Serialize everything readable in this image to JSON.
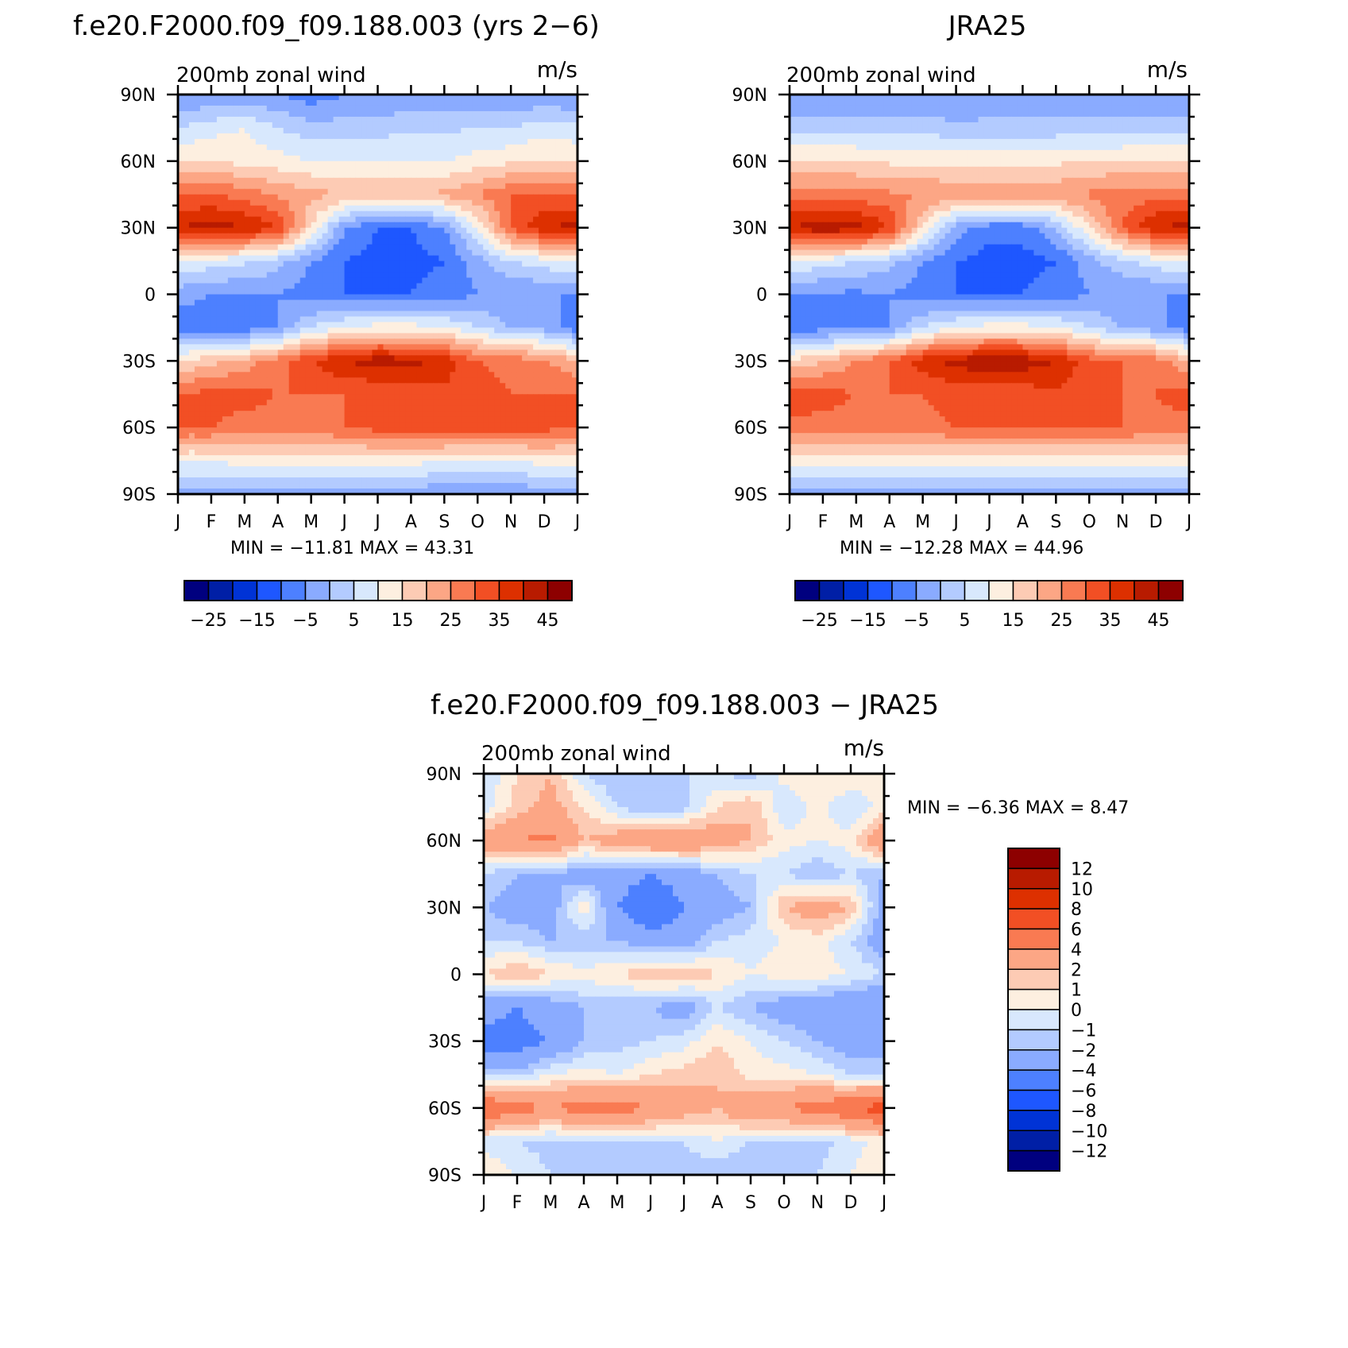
{
  "figure": {
    "months": [
      "J",
      "F",
      "M",
      "A",
      "M",
      "J",
      "J",
      "A",
      "S",
      "O",
      "N",
      "D",
      "J"
    ],
    "lat_ticks": [
      "90N",
      "60N",
      "30N",
      "0",
      "30S",
      "60S",
      "90S"
    ]
  },
  "panels": {
    "model": {
      "title": "f.e20.F2000.f09_f09.188.003 (yrs 2−6)",
      "left_label": "200mb  zonal  wind",
      "right_label": "m/s",
      "stats": "MIN  =  −11.81  MAX  =    43.31"
    },
    "obs": {
      "title": "JRA25",
      "left_label": "200mb  zonal  wind",
      "right_label": "m/s",
      "stats": "MIN  =  −12.28  MAX  =    44.96"
    },
    "diff": {
      "title": "f.e20.F2000.f09_f09.188.003 − JRA25",
      "left_label": "200mb  zonal  wind",
      "right_label": "m/s",
      "stats": "MIN  =    −6.36  MAX  =     8.47"
    }
  },
  "colorbars": {
    "main": {
      "colors": [
        "#00007f",
        "#001fa6",
        "#0033d6",
        "#1e57ff",
        "#4d80ff",
        "#8aabff",
        "#b3cbff",
        "#d8e8fd",
        "#fdefe0",
        "#fdcbb4",
        "#fca685",
        "#f97a52",
        "#f24f24",
        "#dd3000",
        "#b81b00",
        "#8d0000"
      ],
      "labels": [
        "−25",
        "−15",
        "−5",
        "5",
        "15",
        "25",
        "35",
        "45"
      ]
    },
    "diff": {
      "colors": [
        "#00007f",
        "#001fa6",
        "#0033d6",
        "#1e57ff",
        "#4d80ff",
        "#8aabff",
        "#b3cbff",
        "#d8e8fd",
        "#fdefe0",
        "#fdcbb4",
        "#fca685",
        "#f97a52",
        "#f24f24",
        "#dd3000",
        "#b81b00",
        "#8d0000"
      ],
      "labels": [
        "12",
        "10",
        "8",
        "6",
        "4",
        "2",
        "1",
        "0",
        "−1",
        "−2",
        "−4",
        "−6",
        "−8",
        "−10",
        "−12"
      ]
    }
  },
  "chart_data": [
    {
      "type": "heatmap",
      "title": "f.e20.F2000.f09_f09.188.003 (yrs 2−6)",
      "subtitle": "200mb  zonal  wind",
      "units": "m/s",
      "x": [
        "J",
        "F",
        "M",
        "A",
        "M",
        "J",
        "J",
        "A",
        "S",
        "O",
        "N",
        "D",
        "J"
      ],
      "y": [
        90,
        75,
        60,
        45,
        30,
        15,
        0,
        -15,
        -30,
        -45,
        -60,
        -75,
        -90
      ],
      "levels": [
        -30,
        -25,
        -20,
        -15,
        -10,
        -5,
        0,
        5,
        10,
        15,
        20,
        25,
        30,
        35,
        40,
        45
      ],
      "z": [
        [
          -5,
          -5,
          -5,
          -5,
          -8,
          -5,
          -5,
          -5,
          -5,
          -5,
          -5,
          -5,
          -5
        ],
        [
          5,
          8,
          10,
          5,
          2,
          2,
          3,
          4,
          4,
          5,
          5,
          8,
          6
        ],
        [
          15,
          15,
          13,
          12,
          10,
          10,
          10,
          10,
          10,
          12,
          14,
          15,
          15
        ],
        [
          30,
          30,
          28,
          24,
          22,
          20,
          20,
          20,
          21,
          25,
          30,
          30,
          30
        ],
        [
          40,
          43,
          40,
          35,
          15,
          -5,
          -10,
          -10,
          -5,
          10,
          30,
          40,
          42
        ],
        [
          10,
          8,
          6,
          2,
          -5,
          -10,
          -12,
          -12,
          -10,
          -2,
          5,
          8,
          10
        ],
        [
          -3,
          -5,
          -5,
          -5,
          -8,
          -10,
          -10,
          -10,
          -8,
          -5,
          -5,
          -5,
          -5
        ],
        [
          -8,
          -8,
          -8,
          -5,
          5,
          10,
          12,
          12,
          10,
          5,
          0,
          -2,
          -8
        ],
        [
          15,
          18,
          22,
          28,
          35,
          40,
          43,
          42,
          38,
          30,
          28,
          26,
          20
        ],
        [
          30,
          32,
          32,
          30,
          30,
          30,
          30,
          32,
          34,
          32,
          30,
          30,
          30
        ],
        [
          30,
          30,
          28,
          28,
          28,
          30,
          32,
          34,
          34,
          33,
          33,
          32,
          30
        ],
        [
          10,
          10,
          12,
          12,
          12,
          12,
          12,
          12,
          10,
          10,
          10,
          12,
          12
        ],
        [
          -2,
          -2,
          -2,
          -2,
          -2,
          -2,
          -2,
          -2,
          -5,
          -5,
          -5,
          -2,
          -2
        ]
      ]
    },
    {
      "type": "heatmap",
      "title": "JRA25",
      "subtitle": "200mb  zonal  wind",
      "units": "m/s",
      "x": [
        "J",
        "F",
        "M",
        "A",
        "M",
        "J",
        "J",
        "A",
        "S",
        "O",
        "N",
        "D",
        "J"
      ],
      "y": [
        90,
        75,
        60,
        45,
        30,
        15,
        0,
        -15,
        -30,
        -45,
        -60,
        -75,
        -90
      ],
      "levels": [
        -30,
        -25,
        -20,
        -15,
        -10,
        -5,
        0,
        5,
        10,
        15,
        20,
        25,
        30,
        35,
        40,
        45
      ],
      "z": [
        [
          -5,
          -5,
          -5,
          -5,
          -5,
          -5,
          -5,
          -5,
          -5,
          -5,
          -5,
          -5,
          -5
        ],
        [
          3,
          3,
          3,
          3,
          3,
          1,
          2,
          2,
          2,
          2,
          3,
          3,
          3
        ],
        [
          15,
          15,
          15,
          14,
          14,
          13,
          13,
          13,
          14,
          15,
          15,
          15,
          15
        ],
        [
          28,
          28,
          27,
          26,
          25,
          24,
          24,
          24,
          24,
          26,
          28,
          28,
          28
        ],
        [
          40,
          44,
          42,
          35,
          15,
          -2,
          -8,
          -8,
          0,
          15,
          30,
          40,
          42
        ],
        [
          10,
          8,
          5,
          2,
          -5,
          -10,
          -12,
          -12,
          -10,
          -2,
          4,
          8,
          10
        ],
        [
          -5,
          -6,
          -6,
          -5,
          -8,
          -10,
          -10,
          -10,
          -8,
          -5,
          -5,
          -5,
          -5
        ],
        [
          -8,
          -7,
          -6,
          -5,
          5,
          10,
          12,
          12,
          10,
          5,
          0,
          -3,
          -8
        ],
        [
          15,
          20,
          25,
          30,
          38,
          42,
          44,
          43,
          40,
          32,
          30,
          28,
          20
        ],
        [
          34,
          32,
          30,
          30,
          30,
          32,
          32,
          32,
          34,
          32,
          30,
          30,
          33
        ],
        [
          28,
          28,
          28,
          28,
          28,
          30,
          30,
          30,
          30,
          30,
          30,
          28,
          28
        ],
        [
          12,
          12,
          12,
          12,
          12,
          12,
          12,
          12,
          12,
          12,
          12,
          12,
          12
        ],
        [
          -2,
          -2,
          -2,
          -2,
          -2,
          -2,
          -2,
          -2,
          -2,
          -2,
          -2,
          -2,
          -2
        ]
      ]
    },
    {
      "type": "heatmap",
      "title": "f.e20.F2000.f09_f09.188.003 − JRA25",
      "subtitle": "200mb  zonal  wind",
      "units": "m/s",
      "x": [
        "J",
        "F",
        "M",
        "A",
        "M",
        "J",
        "J",
        "A",
        "S",
        "O",
        "N",
        "D",
        "J"
      ],
      "y": [
        90,
        75,
        60,
        45,
        30,
        15,
        0,
        -15,
        -30,
        -45,
        -60,
        -75,
        -90
      ],
      "levels": [
        -14,
        -12,
        -10,
        -8,
        -6,
        -4,
        -2,
        -1,
        0,
        1,
        2,
        4,
        6,
        8,
        10,
        12
      ],
      "z": [
        [
          -1,
          1,
          2,
          -1,
          -2,
          -1.5,
          -1,
          -1,
          -1.5,
          0.5,
          1,
          1,
          0
        ],
        [
          -0.5,
          1.5,
          2.5,
          1,
          -1,
          -2,
          -1.5,
          1,
          2,
          -1,
          0.5,
          -1,
          0.5
        ],
        [
          3,
          4,
          4.5,
          2,
          3,
          4,
          4,
          3,
          2,
          0.5,
          0,
          0.5,
          4
        ],
        [
          -1,
          -2,
          -2,
          -3,
          -3,
          -4,
          -3,
          -2,
          -1,
          -1,
          -2,
          -1,
          -2
        ],
        [
          -2,
          -3,
          -3,
          1,
          -4,
          -6,
          -4,
          -3,
          -2,
          2,
          3,
          2,
          -3
        ],
        [
          -1,
          -1,
          -2,
          -2,
          -2,
          -3,
          -3,
          -1,
          -0.5,
          0,
          0.5,
          -1,
          -3
        ],
        [
          1,
          2,
          1,
          0.5,
          1,
          2,
          2,
          1,
          0,
          0.5,
          0.5,
          0,
          -1
        ],
        [
          -3,
          -4,
          -3,
          -2,
          -2,
          -2,
          -3,
          -1,
          -2,
          -3,
          -3,
          -4,
          -4
        ],
        [
          -5,
          -5,
          -4,
          -2,
          -1.5,
          -1,
          -0.5,
          1,
          0,
          -1,
          -2,
          -3,
          -3
        ],
        [
          -1,
          -1.5,
          0,
          0.5,
          0,
          1,
          1.5,
          2,
          0.5,
          0.5,
          0,
          -1,
          -1
        ],
        [
          6,
          5,
          4,
          5,
          5,
          4,
          3,
          2,
          4,
          4,
          5,
          6,
          7
        ],
        [
          -0.5,
          -1,
          -1.5,
          -1,
          -1,
          -1,
          -1,
          0,
          -1,
          -1,
          -1.5,
          -0.5,
          0.5
        ],
        [
          1,
          0,
          -1,
          -1.5,
          -2,
          -2,
          -1.5,
          -2,
          -2,
          -1.5,
          -1,
          0,
          1
        ]
      ]
    }
  ]
}
